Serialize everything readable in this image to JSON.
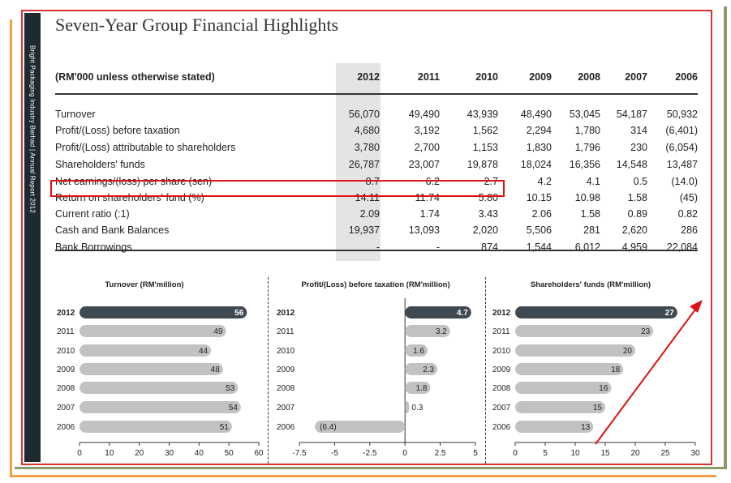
{
  "sidebar": {
    "spine_text": "Bright Packaging Industry Berhad  |  Annual Report 2012"
  },
  "title": "Seven-Year Group Financial Highlights",
  "table": {
    "unit_note": "(RM'000 unless otherwise stated)",
    "years": [
      "2012",
      "2011",
      "2010",
      "2009",
      "2008",
      "2007",
      "2006"
    ],
    "rows": [
      {
        "label": "Turnover",
        "values": [
          "56,070",
          "49,490",
          "43,939",
          "48,490",
          "53,045",
          "54,187",
          "50,932"
        ]
      },
      {
        "label": "Profit/(Loss) before taxation",
        "values": [
          "4,680",
          "3,192",
          "1,562",
          "2,294",
          "1,780",
          "314",
          "(6,401)"
        ]
      },
      {
        "label": "Profit/(Loss) attributable to shareholders",
        "values": [
          "3,780",
          "2,700",
          "1,153",
          "1,830",
          "1,796",
          "230",
          "(6,054)"
        ]
      },
      {
        "label": "Shareholders' funds",
        "values": [
          "26,787",
          "23,007",
          "19,878",
          "18,024",
          "16,356",
          "14,548",
          "13,487"
        ]
      },
      {
        "label": "Net earnings/(loss) per share (sen)",
        "values": [
          "8.7",
          "6.2",
          "2.7",
          "4.2",
          "4.1",
          "0.5",
          "(14.0)"
        ]
      },
      {
        "label": "Return on shareholders' fund (%)",
        "values": [
          "14.11",
          "11.74",
          "5.80",
          "10.15",
          "10.98",
          "1.58",
          "(45)"
        ]
      },
      {
        "label": "Current ratio (:1)",
        "values": [
          "2.09",
          "1.74",
          "3.43",
          "2.06",
          "1.58",
          "0.89",
          "0.82"
        ]
      },
      {
        "label": "Cash and Bank Balances",
        "values": [
          "19,937",
          "13,093",
          "2,020",
          "5,506",
          "281",
          "2,620",
          "286"
        ]
      },
      {
        "label": "Bank Borrowings",
        "values": [
          "-",
          "-",
          "874",
          "1,544",
          "6,012",
          "4,959",
          "22,084"
        ]
      }
    ]
  },
  "colors": {
    "highlight_bar": "#404850",
    "bar": "#c0c2c4",
    "annotation": "#e01010"
  },
  "chart_data": [
    {
      "type": "bar",
      "title": "Turnover (RM'million)",
      "categories": [
        "2012",
        "2011",
        "2010",
        "2009",
        "2008",
        "2007",
        "2006"
      ],
      "values": [
        56,
        49,
        44,
        48,
        53,
        54,
        51
      ],
      "labels": [
        "56",
        "49",
        "44",
        "48",
        "53",
        "54",
        "51"
      ],
      "xlim": [
        0,
        60
      ],
      "ticks": [
        "0",
        "10",
        "20",
        "30",
        "40",
        "50",
        "60"
      ]
    },
    {
      "type": "bar",
      "title": "Profit/(Loss) before taxation (RM'million)",
      "categories": [
        "2012",
        "2011",
        "2010",
        "2009",
        "2008",
        "2007",
        "2006"
      ],
      "values": [
        4.7,
        3.2,
        1.6,
        2.3,
        1.8,
        0.3,
        -6.4
      ],
      "labels": [
        "4.7",
        "3.2",
        "1.6",
        "2.3",
        "1.8",
        "0.3",
        "(6.4)"
      ],
      "xlim": [
        -7.5,
        5
      ],
      "ticks": [
        "-7.5",
        "-5",
        "-2.5",
        "0",
        "2.5",
        "5"
      ]
    },
    {
      "type": "bar",
      "title": "Shareholders' funds (RM'million)",
      "categories": [
        "2012",
        "2011",
        "2010",
        "2009",
        "2008",
        "2007",
        "2006"
      ],
      "values": [
        27,
        23,
        20,
        18,
        16,
        15,
        13
      ],
      "labels": [
        "27",
        "23",
        "20",
        "18",
        "16",
        "15",
        "13"
      ],
      "xlim": [
        0,
        30
      ],
      "ticks": [
        "0",
        "5",
        "10",
        "15",
        "20",
        "25",
        "30"
      ]
    }
  ]
}
